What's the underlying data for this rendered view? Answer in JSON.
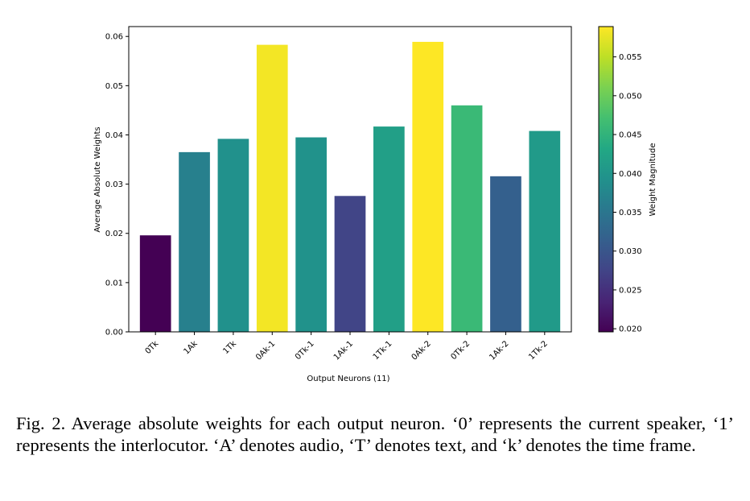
{
  "chart_data": {
    "type": "bar",
    "categories": [
      "0Tk",
      "1Ak",
      "1Tk",
      "0Ak-1",
      "0Tk-1",
      "1Ak-1",
      "1Tk-1",
      "0Ak-2",
      "0Tk-2",
      "1Ak-2",
      "1Tk-2"
    ],
    "values": [
      0.0196,
      0.0365,
      0.0392,
      0.0583,
      0.0395,
      0.0276,
      0.0417,
      0.0589,
      0.046,
      0.0316,
      0.0408
    ],
    "xlabel": "Output Neurons (11)",
    "ylabel": "Average Absolute Weights",
    "ylim": [
      0,
      0.062
    ],
    "yticks": [
      "0.00",
      "0.01",
      "0.02",
      "0.03",
      "0.04",
      "0.05",
      "0.06"
    ],
    "colorbar": {
      "label": "Weight Magnitude",
      "range": [
        0.0196,
        0.0589
      ],
      "ticks": [
        "0.020",
        "0.025",
        "0.030",
        "0.035",
        "0.040",
        "0.045",
        "0.050",
        "0.055"
      ],
      "colormap": "viridis"
    },
    "grid": false
  },
  "caption": {
    "text": "Fig. 2.  Average absolute weights for each output neuron. ‘0’ represents the current speaker, ‘1’ represents the interlocutor. ‘A’ denotes audio, ‘T’ denotes text, and ‘k’ denotes the time frame."
  }
}
